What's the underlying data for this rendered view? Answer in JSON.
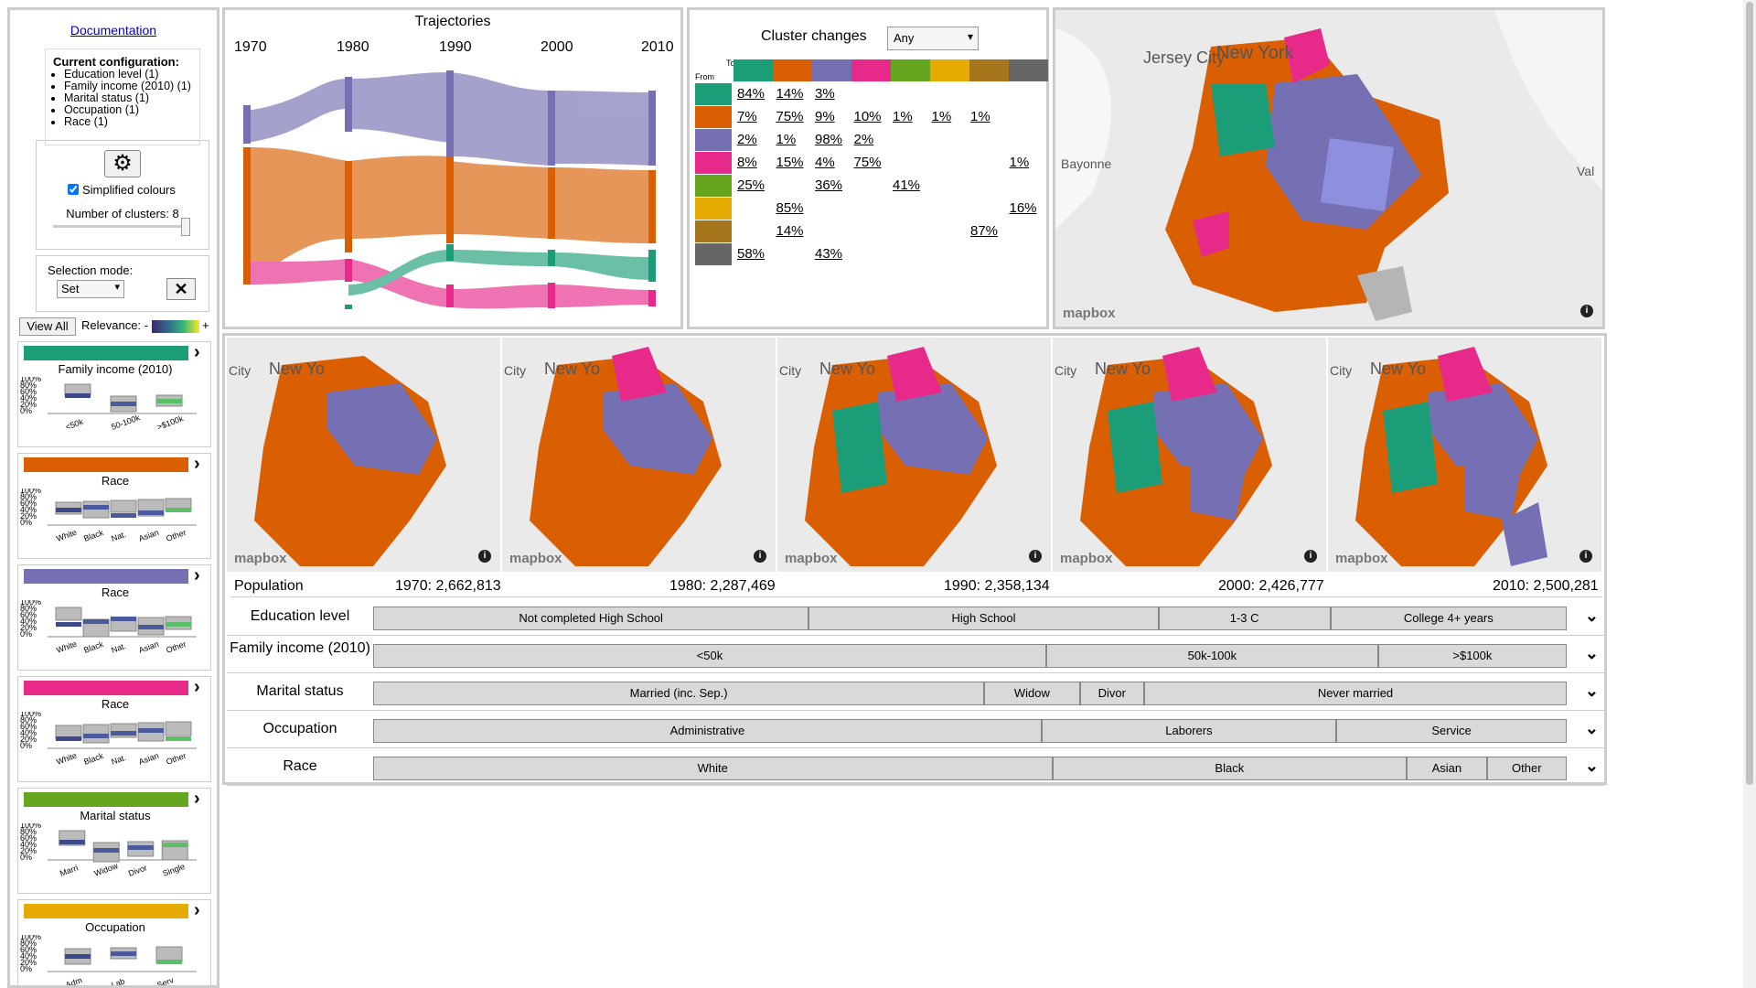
{
  "sidebar": {
    "doc_link": "Documentation",
    "config_title": "Current configuration:",
    "config_items": [
      "Education level (1)",
      "Family income (2010) (1)",
      "Marital status (1)",
      "Occupation (1)",
      "Race (1)"
    ],
    "simplified_colours": "Simplified colours",
    "num_clusters": "Number of clusters: 8",
    "selection_mode_label": "Selection mode:",
    "selection_mode_value": "Set",
    "view_all": "View All",
    "relevance_label": "Relevance: -",
    "relevance_plus": "+",
    "cards": [
      {
        "title": "Family income (2010)",
        "color": "#1b9e77",
        "ticks": [
          "<50k",
          "50-100k",
          ">$100k"
        ]
      },
      {
        "title": "Race",
        "color": "#d95f02",
        "ticks": [
          "White",
          "Black",
          "Nat.",
          "Asian",
          "Other"
        ]
      },
      {
        "title": "Race",
        "color": "#7570b3",
        "ticks": [
          "White",
          "Black",
          "Nat.",
          "Asian",
          "Other"
        ]
      },
      {
        "title": "Race",
        "color": "#e7298a",
        "ticks": [
          "White",
          "Black",
          "Nat.",
          "Asian",
          "Other"
        ]
      },
      {
        "title": "Marital status",
        "color": "#66a61e",
        "ticks": [
          "Marri",
          "Widow",
          "Divor",
          "Single"
        ]
      },
      {
        "title": "Occupation",
        "color": "#e6ab02",
        "ticks": [
          "Adm",
          "Lab",
          "Serv"
        ]
      }
    ],
    "yticks": [
      "100%",
      "80%",
      "60%",
      "40%",
      "20%",
      "0%"
    ]
  },
  "trajectories": {
    "title": "Trajectories",
    "years": [
      "1970",
      "1980",
      "1990",
      "2000",
      "2010"
    ]
  },
  "cluster_changes": {
    "title": "Cluster changes",
    "dropdown": "Any",
    "to_label": "To",
    "from_label": "From",
    "colors": [
      "#1b9e77",
      "#d95f02",
      "#7570b3",
      "#e7298a",
      "#66a61e",
      "#e6ab02",
      "#a6761d",
      "#666666"
    ],
    "rows": [
      [
        "84%",
        "14%",
        "3%",
        "",
        "",
        "",
        "",
        ""
      ],
      [
        "7%",
        "75%",
        "9%",
        "10%",
        "1%",
        "1%",
        "1%",
        ""
      ],
      [
        "2%",
        "1%",
        "98%",
        "2%",
        "",
        "",
        "",
        ""
      ],
      [
        "8%",
        "15%",
        "4%",
        "75%",
        "",
        "",
        "",
        "1%"
      ],
      [
        "25%",
        "",
        "36%",
        "",
        "41%",
        "",
        "",
        ""
      ],
      [
        "",
        "85%",
        "",
        "",
        "",
        "",
        "",
        "16%"
      ],
      [
        "",
        "14%",
        "",
        "",
        "",
        "",
        "87%",
        ""
      ],
      [
        "58%",
        "",
        "43%",
        "",
        "",
        "",
        "",
        ""
      ]
    ]
  },
  "maps": {
    "brand": "mapbox",
    "big_labels": [
      "Jersey City",
      "New York",
      "Bayonne",
      "Val"
    ],
    "small_labels": [
      "City",
      "New Yo"
    ]
  },
  "population": {
    "label": "Population",
    "values": [
      "1970: 2,662,813",
      "1980: 2,287,469",
      "1990: 2,358,134",
      "2000: 2,426,777",
      "2010: 2,500,281"
    ]
  },
  "attributes": [
    {
      "label": "Education level",
      "segments": [
        {
          "label": "Not completed High School",
          "w": 0.365
        },
        {
          "label": "High School",
          "w": 0.293
        },
        {
          "label": "1-3 C",
          "w": 0.144
        },
        {
          "label": "College 4+ years",
          "w": 0.198
        }
      ]
    },
    {
      "label": "Family income (2010)",
      "segments": [
        {
          "label": "<50k",
          "w": 0.564
        },
        {
          "label": "50k-100k",
          "w": 0.278
        },
        {
          "label": ">$100k",
          "w": 0.158
        }
      ]
    },
    {
      "label": "Marital status",
      "segments": [
        {
          "label": "Married (inc. Sep.)",
          "w": 0.512
        },
        {
          "label": "Widow",
          "w": 0.08
        },
        {
          "label": "Divor",
          "w": 0.054
        },
        {
          "label": "Never married",
          "w": 0.354
        }
      ]
    },
    {
      "label": "Occupation",
      "segments": [
        {
          "label": "Administrative",
          "w": 0.56
        },
        {
          "label": "Laborers",
          "w": 0.247
        },
        {
          "label": "Service",
          "w": 0.193
        }
      ]
    },
    {
      "label": "Race",
      "segments": [
        {
          "label": "White",
          "w": 0.569
        },
        {
          "label": "Black",
          "w": 0.297
        },
        {
          "label": "Asian",
          "w": 0.067
        },
        {
          "label": "Other",
          "w": 0.067
        }
      ]
    }
  ]
}
